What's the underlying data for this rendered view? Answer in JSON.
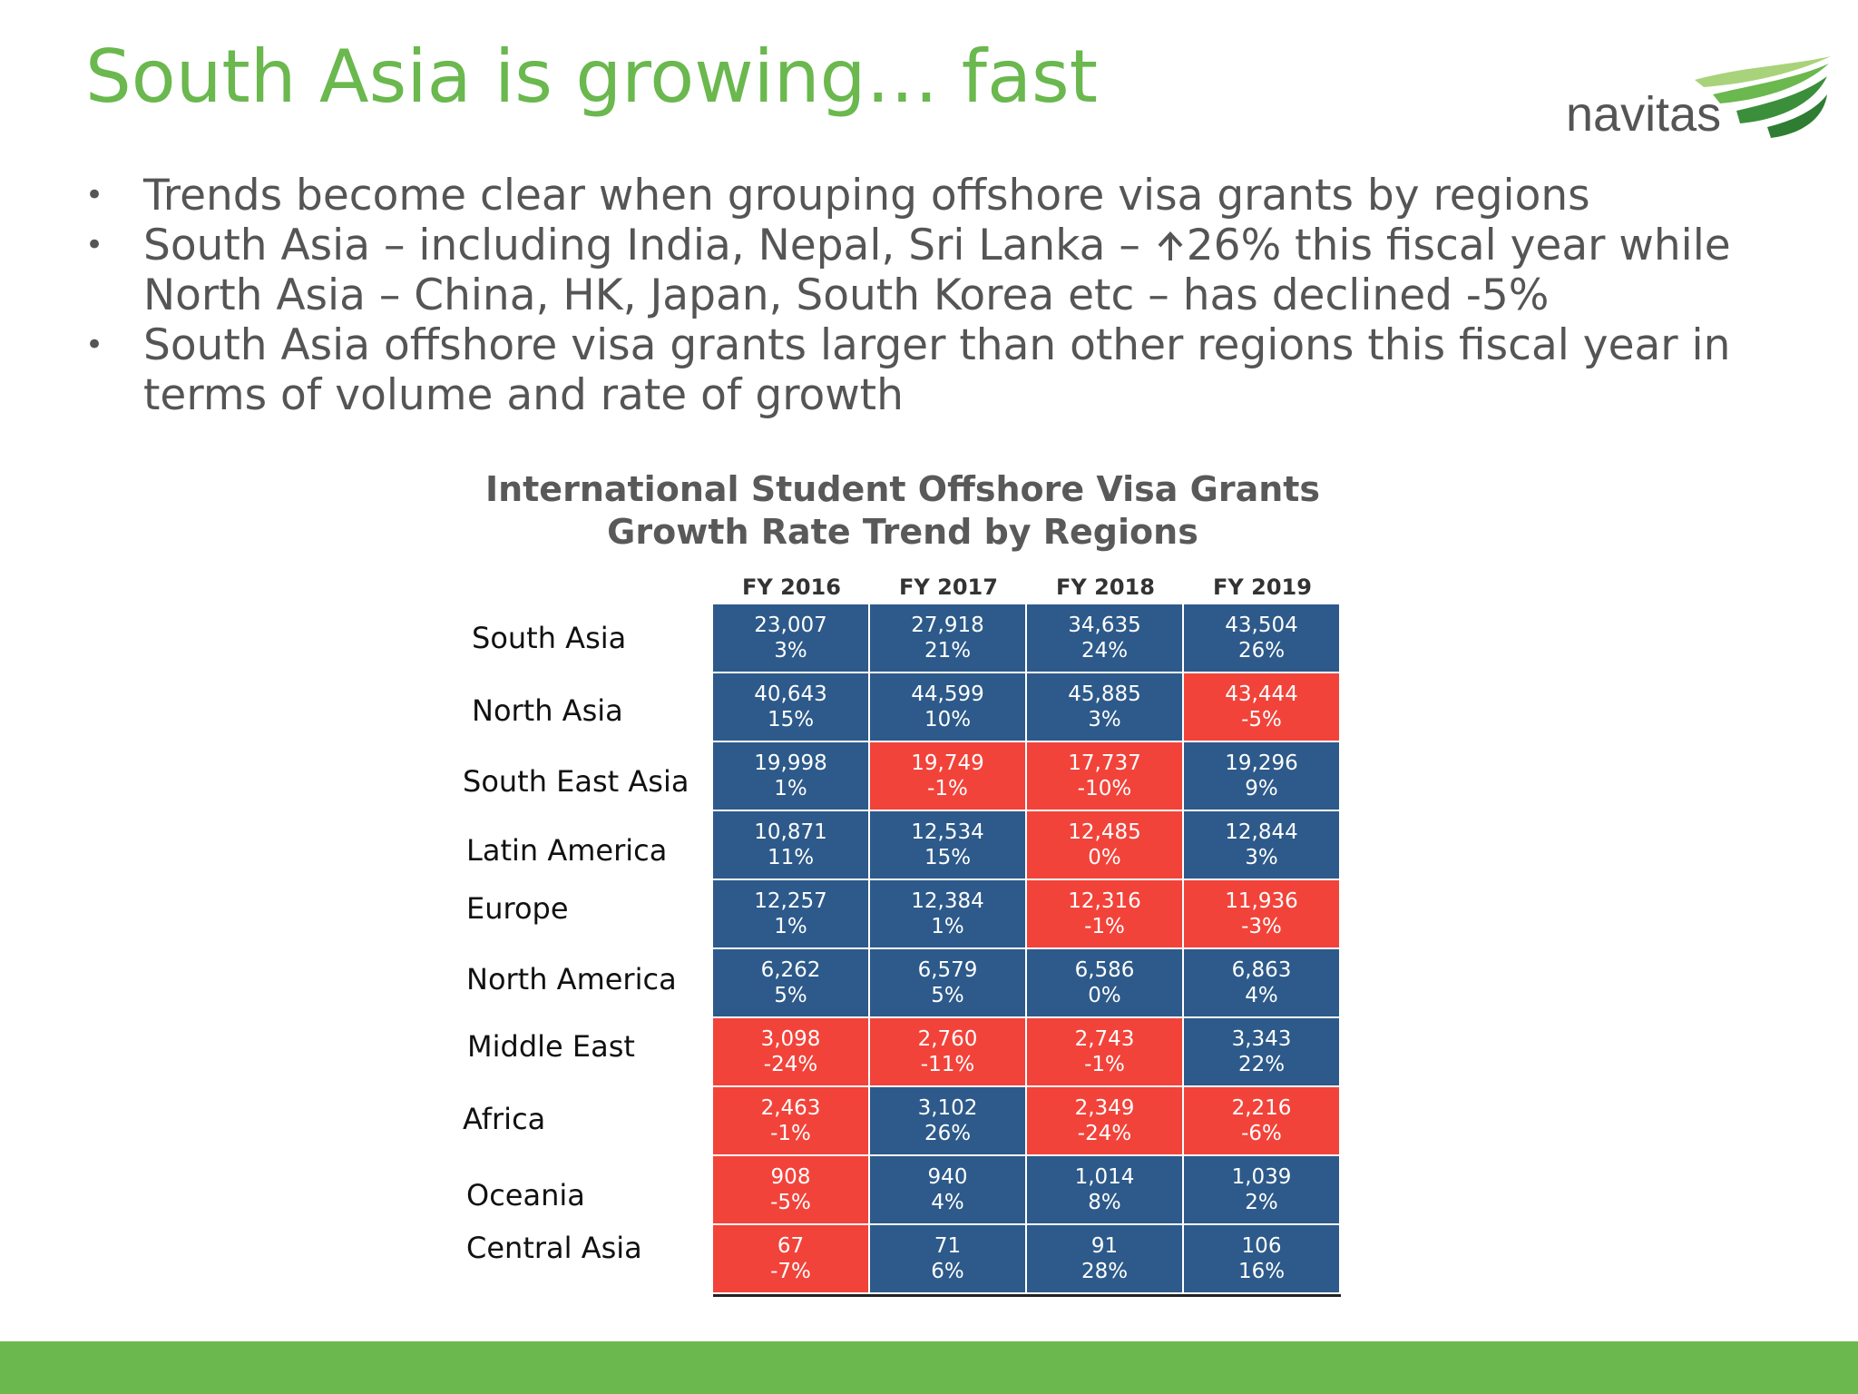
{
  "slide": {
    "title": "South Asia is growing… fast",
    "logo_text": "navitas",
    "bullets": [
      {
        "text": "Trends become clear when grouping offshore visa grants by regions"
      },
      {
        "pre": "South Asia – including India, Nepal, Sri Lanka – ",
        "arrow_icon": "up-arrow-icon",
        "post": "26% this fiscal year while North Asia – China, HK, Japan, South Korea etc – has declined -5%"
      },
      {
        "text": "South Asia offshore visa grants larger than other regions this fiscal year in terms of volume and rate of growth"
      }
    ],
    "colors": {
      "title_green": "#6ab84e",
      "growth_blue": "#2d5a8a",
      "decline_red": "#f2433a",
      "body_gray": "#555555"
    }
  },
  "table": {
    "title_line1": "International Student Offshore Visa Grants",
    "title_line2": "Growth Rate Trend by Regions",
    "columns": [
      "FY 2016",
      "FY 2017",
      "FY 2018",
      "FY 2019"
    ],
    "rows": [
      {
        "region": "South Asia",
        "cells": [
          {
            "value": "23,007",
            "growth": "3%",
            "status": "blue"
          },
          {
            "value": "27,918",
            "growth": "21%",
            "status": "blue"
          },
          {
            "value": "34,635",
            "growth": "24%",
            "status": "blue"
          },
          {
            "value": "43,504",
            "growth": "26%",
            "status": "blue"
          }
        ]
      },
      {
        "region": "North Asia",
        "cells": [
          {
            "value": "40,643",
            "growth": "15%",
            "status": "blue"
          },
          {
            "value": "44,599",
            "growth": "10%",
            "status": "blue"
          },
          {
            "value": "45,885",
            "growth": "3%",
            "status": "blue"
          },
          {
            "value": "43,444",
            "growth": "-5%",
            "status": "red"
          }
        ]
      },
      {
        "region": "South East Asia",
        "cells": [
          {
            "value": "19,998",
            "growth": "1%",
            "status": "blue"
          },
          {
            "value": "19,749",
            "growth": "-1%",
            "status": "red"
          },
          {
            "value": "17,737",
            "growth": "-10%",
            "status": "red"
          },
          {
            "value": "19,296",
            "growth": "9%",
            "status": "blue"
          }
        ]
      },
      {
        "region": "Latin America",
        "cells": [
          {
            "value": "10,871",
            "growth": "11%",
            "status": "blue"
          },
          {
            "value": "12,534",
            "growth": "15%",
            "status": "blue"
          },
          {
            "value": "12,485",
            "growth": "0%",
            "status": "red"
          },
          {
            "value": "12,844",
            "growth": "3%",
            "status": "blue"
          }
        ]
      },
      {
        "region": "Europe",
        "cells": [
          {
            "value": "12,257",
            "growth": "1%",
            "status": "blue"
          },
          {
            "value": "12,384",
            "growth": "1%",
            "status": "blue"
          },
          {
            "value": "12,316",
            "growth": "-1%",
            "status": "red"
          },
          {
            "value": "11,936",
            "growth": "-3%",
            "status": "red"
          }
        ]
      },
      {
        "region": "North America",
        "cells": [
          {
            "value": "6,262",
            "growth": "5%",
            "status": "blue"
          },
          {
            "value": "6,579",
            "growth": "5%",
            "status": "blue"
          },
          {
            "value": "6,586",
            "growth": "0%",
            "status": "blue"
          },
          {
            "value": "6,863",
            "growth": "4%",
            "status": "blue"
          }
        ]
      },
      {
        "region": "Middle East",
        "cells": [
          {
            "value": "3,098",
            "growth": "-24%",
            "status": "red"
          },
          {
            "value": "2,760",
            "growth": "-11%",
            "status": "red"
          },
          {
            "value": "2,743",
            "growth": "-1%",
            "status": "red"
          },
          {
            "value": "3,343",
            "growth": "22%",
            "status": "blue"
          }
        ]
      },
      {
        "region": "Africa",
        "cells": [
          {
            "value": "2,463",
            "growth": "-1%",
            "status": "red"
          },
          {
            "value": "3,102",
            "growth": "26%",
            "status": "blue"
          },
          {
            "value": "2,349",
            "growth": "-24%",
            "status": "red"
          },
          {
            "value": "2,216",
            "growth": "-6%",
            "status": "red"
          }
        ]
      },
      {
        "region": "Oceania",
        "cells": [
          {
            "value": "908",
            "growth": "-5%",
            "status": "red"
          },
          {
            "value": "940",
            "growth": "4%",
            "status": "blue"
          },
          {
            "value": "1,014",
            "growth": "8%",
            "status": "blue"
          },
          {
            "value": "1,039",
            "growth": "2%",
            "status": "blue"
          }
        ]
      },
      {
        "region": "Central Asia",
        "cells": [
          {
            "value": "67",
            "growth": "-7%",
            "status": "red"
          },
          {
            "value": "71",
            "growth": "6%",
            "status": "blue"
          },
          {
            "value": "91",
            "growth": "28%",
            "status": "blue"
          },
          {
            "value": "106",
            "growth": "16%",
            "status": "blue"
          }
        ]
      }
    ]
  }
}
